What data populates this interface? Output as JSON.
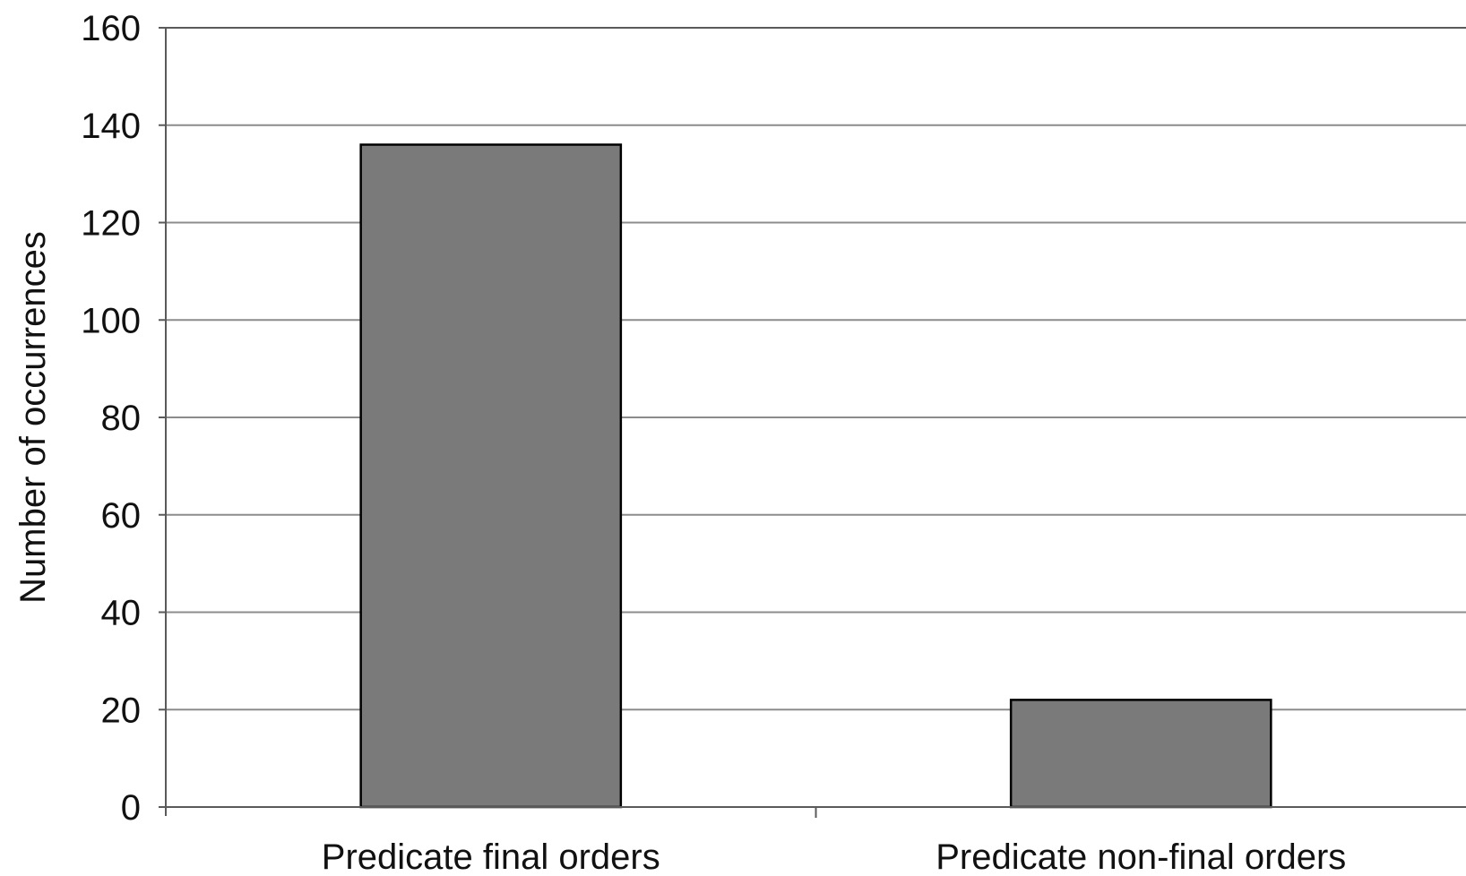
{
  "chart_data": {
    "type": "bar",
    "title": "",
    "xlabel": "",
    "ylabel": "Number of occurrences",
    "categories": [
      "Predicate final orders",
      "Predicate non-final orders"
    ],
    "values": [
      136,
      22
    ],
    "ylim": [
      0,
      160
    ],
    "yticks": [
      "0",
      "20",
      "40",
      "60",
      "80",
      "100",
      "120",
      "140",
      "160"
    ],
    "grid": true,
    "legend": "none",
    "colors": {
      "bar_fill": "#7a7a7a",
      "bar_stroke": "#000000",
      "grid": "#8c8c8c",
      "axis": "#5a5a5a"
    }
  }
}
